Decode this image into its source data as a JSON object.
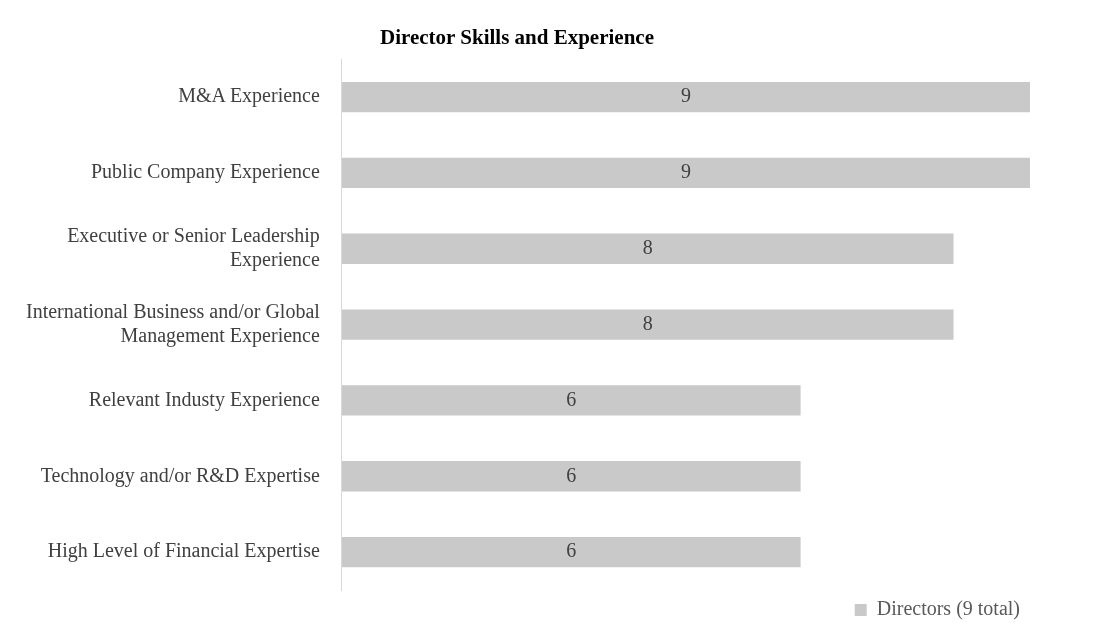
{
  "chart_data": {
    "type": "bar",
    "orientation": "horizontal",
    "title": "Director Skills and Experience",
    "categories": [
      "M&A Experience",
      "Public Company Experience",
      "Executive or Senior Leadership Experience",
      "International Business and/or Global Management Experience",
      "Relevant Industy Experience",
      "Technology and/or R&D Expertise",
      "High Level of Financial Expertise"
    ],
    "series": [
      {
        "name": "Directors (9 total)",
        "color": "#c9c9c9",
        "values": [
          9,
          9,
          8,
          8,
          6,
          6,
          6
        ]
      }
    ],
    "xlim": [
      0,
      9
    ],
    "tick_labels": "y",
    "data_labels": true,
    "grid": false,
    "legend": "bottom right"
  }
}
